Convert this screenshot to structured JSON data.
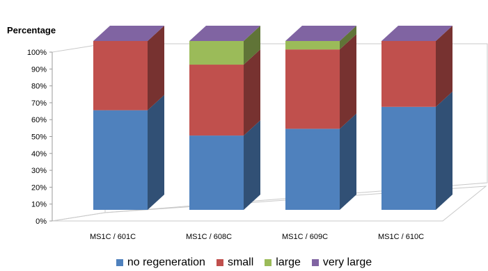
{
  "chart_data": {
    "type": "bar",
    "stacked": true,
    "three_d": true,
    "ylabel": "Percentage",
    "xlabel": "",
    "ylim": [
      0,
      100
    ],
    "yticks": [
      "0%",
      "10%",
      "20%",
      "30%",
      "40%",
      "50%",
      "60%",
      "70%",
      "80%",
      "90%",
      "100%"
    ],
    "categories": [
      "MS1C / 601C",
      "MS1C / 608C",
      "MS1C / 609C",
      "MS1C / 610C"
    ],
    "series": [
      {
        "name": "no regeneration",
        "color": "#4F81BD",
        "values": [
          59,
          44,
          48,
          61
        ]
      },
      {
        "name": "small",
        "color": "#C0504D",
        "values": [
          41,
          42,
          47,
          39
        ]
      },
      {
        "name": "large",
        "color": "#9BBB59",
        "values": [
          0,
          14,
          5,
          0
        ]
      },
      {
        "name": "very large",
        "color": "#8064A2",
        "values": [
          0,
          0,
          0,
          0
        ]
      }
    ],
    "legend_position": "bottom",
    "grid": false
  }
}
